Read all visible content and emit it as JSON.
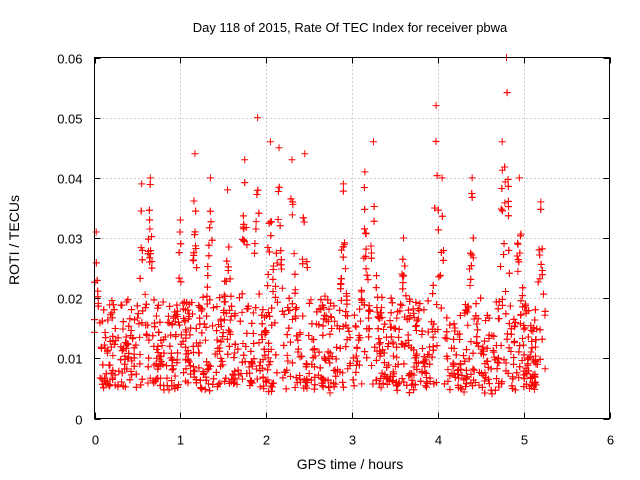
{
  "chart_data": {
    "type": "scatter",
    "title": "Day 118 of 2015, Rate Of TEC Index for receiver pbwa",
    "xlabel": "GPS time / hours",
    "ylabel": "ROTI / TECUs",
    "xlim": [
      0,
      6
    ],
    "ylim": [
      0,
      0.06
    ],
    "x_ticks": [
      0,
      1,
      2,
      3,
      4,
      5,
      6
    ],
    "x_tick_labels": [
      "0",
      "1",
      "2",
      "3",
      "4",
      "5",
      "6"
    ],
    "y_ticks": [
      0,
      0.01,
      0.02,
      0.03,
      0.04,
      0.05,
      0.06
    ],
    "y_tick_labels": [
      "0",
      "0.01",
      "0.02",
      "0.03",
      "0.04",
      "0.05",
      "0.06"
    ],
    "grid": true,
    "marker": "+",
    "color": "#ff0000",
    "series": [
      {
        "name": "ROTI",
        "x_range": [
          0.0,
          5.25
        ],
        "point_count": 2400,
        "baseline_band": [
          0.005,
          0.02
        ],
        "peaks": [
          {
            "x": 0.02,
            "y": 0.031
          },
          {
            "x": 0.55,
            "y": 0.039
          },
          {
            "x": 0.65,
            "y": 0.04
          },
          {
            "x": 1.0,
            "y": 0.033
          },
          {
            "x": 1.17,
            "y": 0.044
          },
          {
            "x": 1.35,
            "y": 0.04
          },
          {
            "x": 1.55,
            "y": 0.038
          },
          {
            "x": 1.75,
            "y": 0.043
          },
          {
            "x": 1.9,
            "y": 0.05
          },
          {
            "x": 2.05,
            "y": 0.046
          },
          {
            "x": 2.15,
            "y": 0.045
          },
          {
            "x": 2.3,
            "y": 0.043
          },
          {
            "x": 2.45,
            "y": 0.044
          },
          {
            "x": 2.9,
            "y": 0.039
          },
          {
            "x": 3.15,
            "y": 0.041
          },
          {
            "x": 3.25,
            "y": 0.046
          },
          {
            "x": 3.6,
            "y": 0.03
          },
          {
            "x": 3.98,
            "y": 0.052
          },
          {
            "x": 4.05,
            "y": 0.04
          },
          {
            "x": 4.4,
            "y": 0.04
          },
          {
            "x": 4.75,
            "y": 0.046
          },
          {
            "x": 4.8,
            "y": 0.06
          },
          {
            "x": 4.95,
            "y": 0.04
          },
          {
            "x": 5.2,
            "y": 0.036
          }
        ]
      }
    ]
  }
}
